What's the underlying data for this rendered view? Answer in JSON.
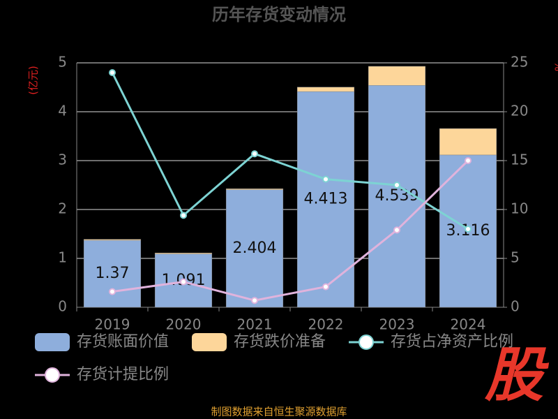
{
  "chart_data": {
    "type": "bar",
    "title": "历年存货变动情况",
    "y_label": "(亿元)",
    "y2_label": "%",
    "categories": [
      "2019",
      "2020",
      "2021",
      "2022",
      "2023",
      "2024"
    ],
    "series": [
      {
        "name": "存货账面价值",
        "color": "#8eaedc",
        "type": "bar",
        "values": [
          1.37,
          1.091,
          2.404,
          4.413,
          4.539,
          3.116
        ]
      },
      {
        "name": "存货跌价准备",
        "color": "#fdd69a",
        "type": "bar",
        "values": [
          0.02,
          0.02,
          0.02,
          0.09,
          0.39,
          0.54
        ]
      },
      {
        "name": "存货占净资产比例",
        "color": "#7dd3d3",
        "type": "line",
        "axis": "y2",
        "values": [
          24.0,
          9.4,
          15.7,
          13.1,
          12.5,
          8.0
        ]
      },
      {
        "name": "存货计提比例",
        "color": "#e0b3dc",
        "type": "line",
        "axis": "y2",
        "values": [
          1.6,
          2.6,
          0.7,
          2.1,
          7.9,
          15.0
        ]
      }
    ],
    "ylim": [
      0,
      5
    ],
    "yticks": [
      0,
      1,
      2,
      3,
      4,
      5
    ],
    "y2lim": [
      0,
      25
    ],
    "y2ticks": [
      0,
      5,
      10,
      15,
      20,
      25
    ],
    "grid": true,
    "source": "制图数据来自恒生聚源数据库",
    "logo": "股"
  }
}
